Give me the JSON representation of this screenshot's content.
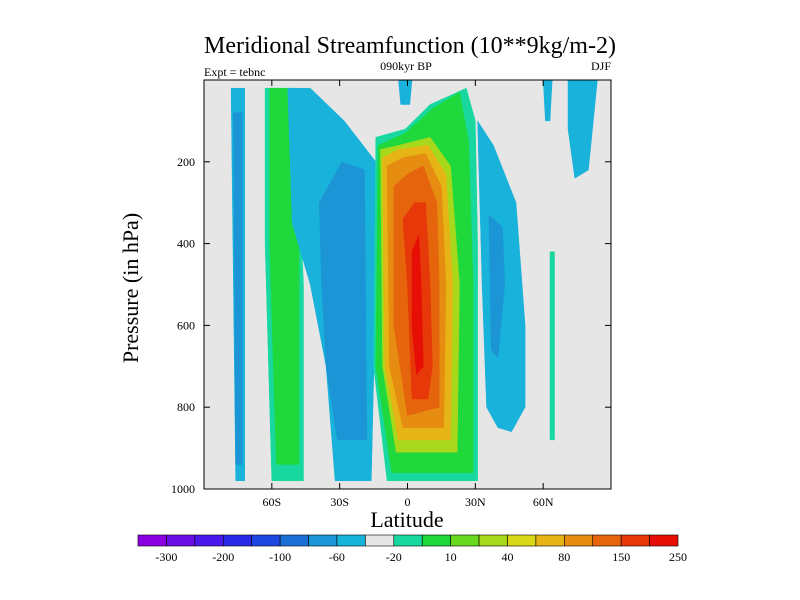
{
  "chart_data": {
    "type": "heatmap",
    "title": "Meridional Streamfunction (10**9kg/m-2)",
    "subtitle_left": "Expt = tebnc",
    "subtitle_center": "090kyr BP",
    "subtitle_right": "DJF",
    "xlabel": "Latitude",
    "ylabel": "Pressure (in hPa)",
    "xlim": [
      -90,
      90
    ],
    "ylim": [
      1000,
      0
    ],
    "xticks": [
      {
        "value": -60,
        "label": "60S"
      },
      {
        "value": -30,
        "label": "30S"
      },
      {
        "value": 0,
        "label": "0"
      },
      {
        "value": 30,
        "label": "30N"
      },
      {
        "value": 60,
        "label": "60N"
      }
    ],
    "yticks": [
      {
        "value": 200,
        "label": "200"
      },
      {
        "value": 400,
        "label": "400"
      },
      {
        "value": 600,
        "label": "600"
      },
      {
        "value": 800,
        "label": "800"
      },
      {
        "value": 1000,
        "label": "1000"
      }
    ],
    "background_color": "#e6e6e6",
    "colorbar": {
      "colors": [
        "#8a00e0",
        "#6a0ee6",
        "#4a18ea",
        "#2a28e8",
        "#1e46e0",
        "#1d6fd8",
        "#1b95d6",
        "#16b3da",
        "#e6e6e6",
        "#18d8a0",
        "#1ed83c",
        "#68d820",
        "#a8d81c",
        "#d8d818",
        "#e6b414",
        "#e68c10",
        "#e6640c",
        "#e63808",
        "#e60e05"
      ],
      "labels": [
        "-300",
        "-200",
        "-100",
        "-60",
        "-20",
        "10",
        "40",
        "80",
        "150",
        "250"
      ]
    },
    "regions": [
      {
        "name": "band-55s-outer",
        "color": "#18b2da",
        "points": [
          [
            -78,
            20
          ],
          [
            -72,
            20
          ],
          [
            -72,
            980
          ],
          [
            -76,
            980
          ],
          [
            -77,
            500
          ]
        ]
      },
      {
        "name": "band-55s-inner",
        "color": "#1b95d6",
        "points": [
          [
            -77,
            80
          ],
          [
            -73,
            80
          ],
          [
            -73,
            940
          ],
          [
            -76,
            940
          ]
        ]
      },
      {
        "name": "band-45s-green-outer",
        "color": "#18d8a0",
        "points": [
          [
            -63,
            20
          ],
          [
            -50,
            20
          ],
          [
            -46,
            500
          ],
          [
            -46,
            980
          ],
          [
            -60,
            980
          ],
          [
            -63,
            400
          ]
        ]
      },
      {
        "name": "band-45s-green",
        "color": "#1ed83c",
        "points": [
          [
            -61,
            20
          ],
          [
            -51,
            20
          ],
          [
            -48,
            400
          ],
          [
            -48,
            940
          ],
          [
            -58,
            940
          ],
          [
            -61,
            400
          ]
        ]
      },
      {
        "name": "band-30s-outer",
        "color": "#18b2da",
        "points": [
          [
            -53,
            20
          ],
          [
            -43,
            20
          ],
          [
            -28,
            100
          ],
          [
            -14,
            200
          ],
          [
            -14,
            500
          ],
          [
            -16,
            980
          ],
          [
            -32,
            980
          ],
          [
            -36,
            700
          ],
          [
            -43,
            500
          ],
          [
            -51,
            350
          ]
        ]
      },
      {
        "name": "band-30s-inner",
        "color": "#1b95d6",
        "points": [
          [
            -39,
            300
          ],
          [
            -29,
            200
          ],
          [
            -19,
            220
          ],
          [
            -18,
            880
          ],
          [
            -31,
            880
          ],
          [
            -36,
            700
          ],
          [
            -38,
            500
          ]
        ]
      },
      {
        "name": "cell-level-10",
        "color": "#18d8a0",
        "points": [
          [
            -14,
            140
          ],
          [
            -1,
            120
          ],
          [
            10,
            60
          ],
          [
            26,
            20
          ],
          [
            30,
            100
          ],
          [
            31,
            400
          ],
          [
            31,
            980
          ],
          [
            -9,
            980
          ],
          [
            -15,
            700
          ]
        ]
      },
      {
        "name": "cell-level-40",
        "color": "#1ed83c",
        "points": [
          [
            -13,
            160
          ],
          [
            -1,
            130
          ],
          [
            11,
            70
          ],
          [
            23,
            30
          ],
          [
            27,
            150
          ],
          [
            29,
            500
          ],
          [
            29,
            960
          ],
          [
            -7,
            960
          ],
          [
            -14,
            700
          ]
        ]
      },
      {
        "name": "cell-level-80",
        "color": "#a8d81c",
        "points": [
          [
            -12,
            170
          ],
          [
            -4,
            160
          ],
          [
            10,
            140
          ],
          [
            19,
            210
          ],
          [
            23,
            500
          ],
          [
            22,
            910
          ],
          [
            -5,
            910
          ],
          [
            -11,
            700
          ]
        ]
      },
      {
        "name": "cell-level-150",
        "color": "#e6b414",
        "points": [
          [
            -11,
            190
          ],
          [
            -4,
            170
          ],
          [
            9,
            160
          ],
          [
            17,
            230
          ],
          [
            20,
            500
          ],
          [
            19,
            880
          ],
          [
            -4,
            880
          ],
          [
            -10,
            700
          ]
        ]
      },
      {
        "name": "cell-level-200",
        "color": "#e68c10",
        "points": [
          [
            -9,
            210
          ],
          [
            -2,
            190
          ],
          [
            8,
            180
          ],
          [
            15,
            260
          ],
          [
            17,
            500
          ],
          [
            16,
            850
          ],
          [
            -2,
            850
          ],
          [
            -8,
            700
          ]
        ]
      },
      {
        "name": "cell-level-250",
        "color": "#e6640c",
        "points": [
          [
            -6,
            260
          ],
          [
            0,
            230
          ],
          [
            7,
            210
          ],
          [
            13,
            300
          ],
          [
            14,
            500
          ],
          [
            14,
            800
          ],
          [
            0,
            820
          ],
          [
            -6,
            600
          ]
        ]
      },
      {
        "name": "cell-level-300",
        "color": "#e63808",
        "points": [
          [
            -2,
            340
          ],
          [
            3,
            300
          ],
          [
            8,
            300
          ],
          [
            10,
            500
          ],
          [
            11,
            700
          ],
          [
            9,
            780
          ],
          [
            2,
            780
          ],
          [
            0,
            500
          ]
        ]
      },
      {
        "name": "cell-core",
        "color": "#e60e05",
        "points": [
          [
            2,
            420
          ],
          [
            5,
            380
          ],
          [
            6,
            500
          ],
          [
            7,
            700
          ],
          [
            4,
            720
          ],
          [
            2,
            600
          ]
        ]
      },
      {
        "name": "band-40n-outer",
        "color": "#18b2da",
        "points": [
          [
            31,
            100
          ],
          [
            38,
            160
          ],
          [
            48,
            300
          ],
          [
            52,
            600
          ],
          [
            52,
            800
          ],
          [
            46,
            860
          ],
          [
            40,
            850
          ],
          [
            35,
            800
          ],
          [
            33,
            500
          ]
        ]
      },
      {
        "name": "band-40n-inner",
        "color": "#1b95d6",
        "points": [
          [
            36,
            330
          ],
          [
            42,
            360
          ],
          [
            43,
            500
          ],
          [
            40,
            680
          ],
          [
            37,
            660
          ]
        ]
      },
      {
        "name": "band-60n-green",
        "color": "#18d8a0",
        "points": [
          [
            63,
            420
          ],
          [
            65,
            420
          ],
          [
            65,
            880
          ],
          [
            63,
            880
          ]
        ]
      },
      {
        "name": "top-tuft-0",
        "color": "#18b2da",
        "points": [
          [
            -4,
            0
          ],
          [
            2,
            0
          ],
          [
            1,
            60
          ],
          [
            -3,
            60
          ]
        ]
      },
      {
        "name": "top-tuft-60n",
        "color": "#18b2da",
        "points": [
          [
            60,
            0
          ],
          [
            64,
            0
          ],
          [
            63,
            100
          ],
          [
            61,
            100
          ]
        ]
      },
      {
        "name": "top-tuft-75n",
        "color": "#18b2da",
        "points": [
          [
            71,
            0
          ],
          [
            84,
            0
          ],
          [
            80,
            220
          ],
          [
            74,
            240
          ],
          [
            71,
            120
          ]
        ]
      }
    ]
  }
}
